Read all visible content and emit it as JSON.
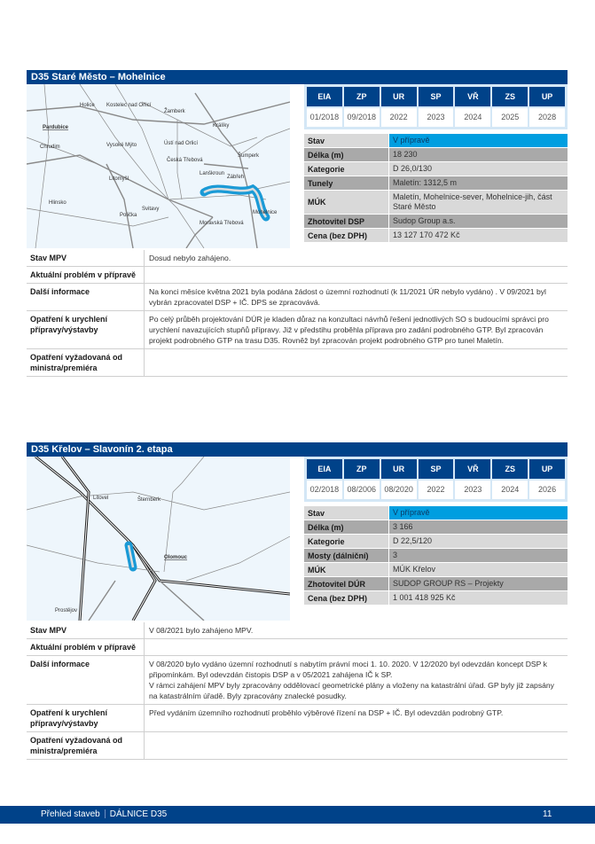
{
  "projects": [
    {
      "title": "D35 Staré Město – Mohelnice",
      "milestones": {
        "headers": [
          "EIA",
          "ZP",
          "UR",
          "SP",
          "VŘ",
          "ZS",
          "UP"
        ],
        "values": [
          "01/2018",
          "09/2018",
          "2022",
          "2023",
          "2024",
          "2025",
          "2028"
        ]
      },
      "info": [
        {
          "label": "Stav",
          "value": "V přípravě"
        },
        {
          "label": "Délka (m)",
          "value": "18 230"
        },
        {
          "label": "Kategorie",
          "value": "D 26,0/130"
        },
        {
          "label": "Tunely",
          "value": "Maletín: 1312,5 m"
        },
        {
          "label": "MÚK",
          "value": "Maletín, Mohelnice-sever, Mohelnice-jih, část Staré Město"
        },
        {
          "label": "Zhotovitel DSP",
          "value": "Sudop Group a.s."
        },
        {
          "label": "Cena (bez DPH)",
          "value": "13 127 170 472 Kč"
        }
      ],
      "details": [
        {
          "label": "Stav MPV",
          "value": "Dosud nebylo zahájeno."
        },
        {
          "label": "Aktuální problém v přípravě",
          "value": ""
        },
        {
          "label": "Další informace",
          "value": "Na konci měsíce května 2021 byla podána žádost o územní rozhodnutí (k 11/2021 ÚR nebylo vydáno) . V 09/2021 byl vybrán zpracovatel DSP + IČ. DPS se zpracovává."
        },
        {
          "label": "Opatření k urychlení přípravy/výstavby",
          "value": "Po celý průběh projektování DÚR je kladen důraz na konzultaci návrhů řešení jednotlivých SO s budoucími správci pro urychlení navazujících stupňů přípravy. Již v předstihu proběhla příprava pro zadání podrobného GTP. Byl zpracován projekt podrobného GTP na trasu D35. Rovněž byl zpracován projekt podrobného GTP pro tunel Maletín."
        },
        {
          "label": "Opatření vyžadovaná od ministra/premiéra",
          "value": ""
        }
      ],
      "map_labels": [
        "Holice",
        "Kostelec nad Orlicí",
        "Žamberk",
        "Králíky",
        "Pardubice",
        "Chrudim",
        "Vysoké Mýto",
        "Ústí nad Orlicí",
        "Šumperk",
        "Česká Třebová",
        "Lanškroun",
        "Zábřeh",
        "Litomyšl",
        "Hlinsko",
        "Svitavy",
        "Polička",
        "Moravská Třebová",
        "Mohelnice"
      ]
    },
    {
      "title": "D35 Křelov – Slavonín 2. etapa",
      "milestones": {
        "headers": [
          "EIA",
          "ZP",
          "UR",
          "SP",
          "VŘ",
          "ZS",
          "UP"
        ],
        "values": [
          "02/2018",
          "08/2006",
          "08/2020",
          "2022",
          "2023",
          "2024",
          "2026"
        ]
      },
      "info": [
        {
          "label": "Stav",
          "value": "V přípravě"
        },
        {
          "label": "Délka (m)",
          "value": "3 166"
        },
        {
          "label": "Kategorie",
          "value": "D 22,5/120"
        },
        {
          "label": "Mosty (dálniční)",
          "value": "3"
        },
        {
          "label": "MÚK",
          "value": "MÚK Křelov"
        },
        {
          "label": "Zhotovitel DÚR",
          "value": "SUDOP GROUP RS – Projekty"
        },
        {
          "label": "Cena (bez DPH)",
          "value": "1 001 418 925 Kč"
        }
      ],
      "details": [
        {
          "label": "Stav MPV",
          "value": "V 08/2021 bylo zahájeno MPV."
        },
        {
          "label": "Aktuální problém v přípravě",
          "value": ""
        },
        {
          "label": "Další informace",
          "value": "V 08/2020 bylo vydáno územní rozhodnutí s nabytím právní moci 1. 10. 2020. V 12/2020 byl odevzdán koncept DSP k připomínkám. Byl odevzdán čistopis DSP a v 05/2021 zahájena IČ k SP.\nV rámci zahájení MPV byly zpracovány oddělovací geometrické plány a vloženy na katastrální úřad. GP byly již zapsány na katastrálním úřadě. Byly zpracovány znalecké posudky."
        },
        {
          "label": "Opatření k urychlení přípravy/výstavby",
          "value": "Před vydáním územního rozhodnutí proběhlo výběrové řízení na DSP + IČ. Byl odevzdán podrobný GTP."
        },
        {
          "label": "Opatření vyžadovaná od ministra/premiéra",
          "value": ""
        }
      ],
      "map_labels": [
        "Litovel",
        "Šternberk",
        "Olomouc",
        "Prostějov"
      ]
    }
  ],
  "footer": {
    "section": "Přehled staveb",
    "chapter": "DÁLNICE D35",
    "page": "11"
  },
  "colors": {
    "brand_blue": "#004289",
    "status_cyan": "#009ee0",
    "highlight_route": "#1a9ad6"
  }
}
